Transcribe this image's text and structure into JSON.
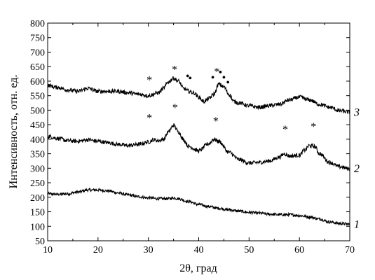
{
  "chart_data": {
    "type": "line",
    "title": "",
    "xlabel": "2θ, град",
    "ylabel": "Интенсивность, отн. ед.",
    "xlim": [
      10,
      70
    ],
    "ylim": [
      50,
      800
    ],
    "xticks": [
      10,
      20,
      30,
      40,
      50,
      60,
      70
    ],
    "yticks": [
      50,
      100,
      150,
      200,
      250,
      300,
      350,
      400,
      450,
      500,
      550,
      600,
      650,
      700,
      750,
      800
    ],
    "grid": false,
    "legend": "none",
    "series": [
      {
        "label": "1",
        "x": [
          10,
          12,
          14,
          16,
          18,
          20,
          22,
          24,
          26,
          28,
          30,
          32,
          34,
          35,
          36,
          38,
          40,
          42,
          44,
          46,
          48,
          50,
          52,
          54,
          56,
          58,
          60,
          62,
          64,
          66,
          68,
          70
        ],
        "y": [
          212,
          210,
          212,
          218,
          225,
          225,
          222,
          215,
          208,
          202,
          198,
          195,
          195,
          198,
          195,
          185,
          175,
          168,
          162,
          157,
          152,
          148,
          145,
          142,
          140,
          140,
          137,
          132,
          125,
          115,
          110,
          107
        ]
      },
      {
        "label": "2",
        "x": [
          10,
          12,
          14,
          16,
          18,
          20,
          22,
          24,
          26,
          28,
          30,
          31,
          32,
          33,
          34,
          35,
          36,
          37,
          38,
          40,
          42,
          43,
          44,
          46,
          48,
          50,
          52,
          54,
          56,
          57,
          58,
          60,
          61,
          62,
          63,
          64,
          66,
          68,
          70
        ],
        "y": [
          410,
          403,
          395,
          393,
          398,
          393,
          388,
          382,
          378,
          382,
          390,
          398,
          395,
          400,
          425,
          448,
          425,
          398,
          375,
          360,
          385,
          400,
          392,
          355,
          330,
          318,
          320,
          325,
          338,
          350,
          342,
          345,
          362,
          378,
          375,
          350,
          320,
          305,
          298
        ]
      },
      {
        "label": "3",
        "x": [
          10,
          12,
          14,
          16,
          18,
          20,
          22,
          24,
          26,
          28,
          30,
          32,
          33,
          34,
          35,
          36,
          37,
          38,
          39,
          40,
          41,
          42,
          43,
          44,
          45,
          46,
          47,
          48,
          50,
          52,
          54,
          56,
          58,
          60,
          62,
          64,
          66,
          68,
          70
        ],
        "y": [
          585,
          578,
          570,
          565,
          575,
          565,
          565,
          565,
          560,
          555,
          550,
          560,
          575,
          598,
          610,
          600,
          575,
          565,
          560,
          545,
          530,
          540,
          555,
          590,
          580,
          555,
          530,
          525,
          515,
          510,
          515,
          520,
          535,
          545,
          535,
          520,
          510,
          498,
          493
        ]
      }
    ],
    "annotations": [
      {
        "text": "*",
        "x": 30.2,
        "y": 615
      },
      {
        "text": "*",
        "x": 35.2,
        "y": 652
      },
      {
        "text": "•",
        "x": 37.8,
        "y": 617
      },
      {
        "text": "•",
        "x": 38.3,
        "y": 610
      },
      {
        "text": "•",
        "x": 42.8,
        "y": 612
      },
      {
        "text": "*",
        "x": 43.6,
        "y": 645
      },
      {
        "text": "•",
        "x": 44.3,
        "y": 630
      },
      {
        "text": "•",
        "x": 45.0,
        "y": 612
      },
      {
        "text": "•",
        "x": 45.8,
        "y": 595
      },
      {
        "text": "*",
        "x": 30.2,
        "y": 485
      },
      {
        "text": "*",
        "x": 35.3,
        "y": 520
      },
      {
        "text": "*",
        "x": 43.4,
        "y": 475
      },
      {
        "text": "*",
        "x": 57.2,
        "y": 445
      },
      {
        "text": "*",
        "x": 62.8,
        "y": 455
      }
    ]
  }
}
